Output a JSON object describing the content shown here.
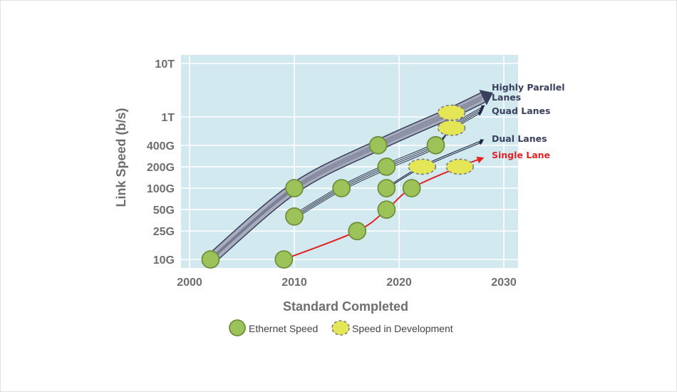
{
  "chart_data": {
    "type": "line",
    "xlabel": "Standard Completed",
    "ylabel": "Link Speed (b/s)",
    "xlim": [
      2000,
      2030
    ],
    "y_scale": "log",
    "x_ticks": [
      "2000",
      "2010",
      "2020",
      "2030"
    ],
    "x_tick_values": [
      2000,
      2010,
      2020,
      2030
    ],
    "y_ticks": [
      "10G",
      "25G",
      "50G",
      "100G",
      "200G",
      "400G",
      "1T",
      "10T"
    ],
    "y_tick_values": [
      10,
      25,
      50,
      100,
      200,
      400,
      1000,
      10000
    ],
    "y_unit": "Gb/s",
    "grid": true,
    "background": "#d2e9f0",
    "series": [
      {
        "name": "Highly Parallel Lanes",
        "color": "#3a3f5c",
        "points": [
          {
            "x": 2002,
            "y": 10,
            "kind": "ethernet"
          },
          {
            "x": 2010,
            "y": 100,
            "kind": "ethernet"
          },
          {
            "x": 2018,
            "y": 400,
            "kind": "ethernet"
          },
          {
            "x": 2025,
            "y": 1200,
            "kind": "development"
          }
        ],
        "end": {
          "x": 2028,
          "y": 2300
        }
      },
      {
        "name": "Quad Lanes",
        "color": "#23233a",
        "points": [
          {
            "x": 2010,
            "y": 40,
            "kind": "ethernet"
          },
          {
            "x": 2014.5,
            "y": 100,
            "kind": "ethernet"
          },
          {
            "x": 2018.8,
            "y": 200,
            "kind": "ethernet"
          },
          {
            "x": 2023.5,
            "y": 400,
            "kind": "ethernet"
          },
          {
            "x": 2025,
            "y": 700,
            "kind": "development"
          }
        ],
        "end": {
          "x": 2028,
          "y": 1400
        }
      },
      {
        "name": "Dual Lanes",
        "color": "#1b2340",
        "points": [
          {
            "x": 2018.8,
            "y": 100,
            "kind": "ethernet"
          },
          {
            "x": 2022.2,
            "y": 200,
            "kind": "development"
          }
        ],
        "end": {
          "x": 2028,
          "y": 460
        }
      },
      {
        "name": "Single Lane",
        "color": "#e02424",
        "points": [
          {
            "x": 2009,
            "y": 10,
            "kind": "ethernet"
          },
          {
            "x": 2016,
            "y": 25,
            "kind": "ethernet"
          },
          {
            "x": 2018.8,
            "y": 50,
            "kind": "ethernet"
          },
          {
            "x": 2021.2,
            "y": 100,
            "kind": "ethernet"
          },
          {
            "x": 2025.8,
            "y": 200,
            "kind": "development"
          }
        ],
        "end": {
          "x": 2028,
          "y": 265
        }
      }
    ],
    "labels": [
      {
        "text_lines": [
          "Highly Parallel",
          "Lanes"
        ],
        "color": "#3a3f5c"
      },
      {
        "text_lines": [
          "Quad Lanes"
        ],
        "color": "#3a3f5c"
      },
      {
        "text_lines": [
          "Dual Lanes"
        ],
        "color": "#3a3f5c"
      },
      {
        "text_lines": [
          "Single Lane"
        ],
        "color": "#e02424"
      }
    ],
    "legend": {
      "position": "bottom",
      "items": [
        {
          "label": "Ethernet Speed",
          "kind": "ethernet"
        },
        {
          "label": "Speed in Development",
          "kind": "development"
        }
      ]
    },
    "marker_colors": {
      "ethernet_fill": "#9cc35a",
      "ethernet_stroke": "#6f8f3a",
      "development_fill": "#e4e655",
      "development_stroke": "#7a7e80"
    }
  }
}
